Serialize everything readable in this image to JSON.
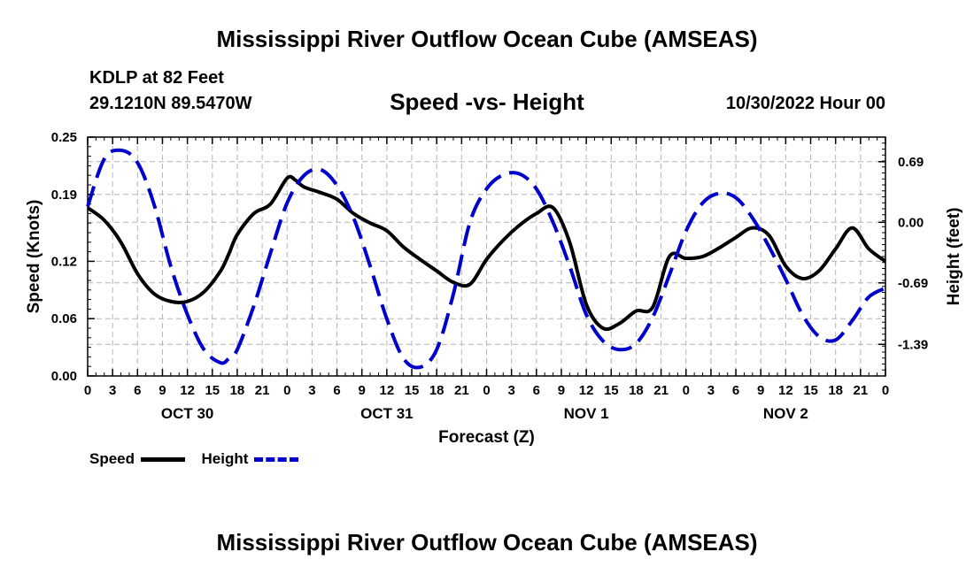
{
  "header": {
    "title": "Mississippi River Outflow Ocean Cube (AMSEAS)",
    "station": "KDLP at 82 Feet",
    "coords": "29.1210N  89.5470W",
    "subtitle": "Speed -vs- Height",
    "datetime": "10/30/2022 Hour 00",
    "footer_title": "Mississippi River Outflow Ocean Cube (AMSEAS)"
  },
  "legend": {
    "speed_label": "Speed",
    "height_label": "Height"
  },
  "colors": {
    "speed": "#000000",
    "height": "#0000cc",
    "grid": "#b4b4b4"
  },
  "chart_data": {
    "type": "line",
    "title": "Speed -vs- Height",
    "xlabel": "Forecast (Z)",
    "ylabel": "Speed (Knots)",
    "y2label": "Height (feet)",
    "xlim": [
      0,
      96
    ],
    "ylim": [
      0,
      0.25
    ],
    "y2lim": [
      -1.75,
      0.97
    ],
    "x_ticks": [
      0,
      3,
      6,
      9,
      12,
      15,
      18,
      21,
      24,
      27,
      30,
      33,
      36,
      39,
      42,
      45,
      48,
      51,
      54,
      57,
      60,
      63,
      66,
      69,
      72,
      75,
      78,
      81,
      84,
      87,
      90,
      93,
      96
    ],
    "x_tick_labels": [
      "0",
      "3",
      "6",
      "9",
      "12",
      "15",
      "18",
      "21",
      "0",
      "3",
      "6",
      "9",
      "12",
      "15",
      "18",
      "21",
      "0",
      "3",
      "6",
      "9",
      "12",
      "15",
      "18",
      "21",
      "0",
      "3",
      "6",
      "9",
      "12",
      "15",
      "18",
      "21",
      "0"
    ],
    "day_labels": [
      {
        "x": 12,
        "label": "OCT 30"
      },
      {
        "x": 36,
        "label": "OCT 31"
      },
      {
        "x": 60,
        "label": "NOV 1"
      },
      {
        "x": 84,
        "label": "NOV 2"
      }
    ],
    "y_ticks": [
      0.0,
      0.06,
      0.12,
      0.19,
      0.25
    ],
    "y_tick_labels": [
      "0.00",
      "0.06",
      "0.12",
      "0.19",
      "0.25"
    ],
    "y2_ticks": [
      0.69,
      0.0,
      -0.69,
      -1.39
    ],
    "y2_tick_labels": [
      "0.69",
      "0.00",
      "-0.69",
      "-1.39"
    ],
    "grid": true,
    "series": [
      {
        "name": "Speed",
        "axis": "left",
        "style": "solid",
        "x": [
          0,
          2,
          4,
          6,
          8,
          10,
          12,
          14,
          16,
          17,
          18,
          20,
          22,
          24,
          25,
          26,
          28,
          30,
          32,
          34,
          36,
          38,
          40,
          42,
          44,
          46,
          48,
          50,
          52,
          54,
          56,
          58,
          60,
          62,
          64,
          66,
          68,
          70,
          72,
          74,
          76,
          78,
          80,
          82,
          84,
          86,
          88,
          90,
          92,
          94,
          96
        ],
        "values": [
          0.176,
          0.163,
          0.14,
          0.107,
          0.086,
          0.078,
          0.078,
          0.088,
          0.11,
          0.128,
          0.148,
          0.17,
          0.18,
          0.207,
          0.205,
          0.198,
          0.192,
          0.185,
          0.17,
          0.16,
          0.152,
          0.135,
          0.122,
          0.11,
          0.098,
          0.096,
          0.122,
          0.142,
          0.158,
          0.17,
          0.176,
          0.14,
          0.075,
          0.05,
          0.055,
          0.068,
          0.072,
          0.125,
          0.123,
          0.125,
          0.134,
          0.145,
          0.155,
          0.147,
          0.115,
          0.102,
          0.11,
          0.133,
          0.155,
          0.133,
          0.12
        ]
      },
      {
        "name": "Height",
        "axis": "right",
        "style": "dashed",
        "x": [
          0,
          2,
          4,
          6,
          8,
          10,
          12,
          14,
          16,
          17,
          18,
          20,
          22,
          24,
          26,
          28,
          30,
          32,
          34,
          36,
          38,
          40,
          42,
          44,
          46,
          48,
          50,
          52,
          54,
          56,
          58,
          60,
          62,
          64,
          66,
          68,
          70,
          72,
          74,
          76,
          78,
          80,
          82,
          84,
          86,
          88,
          90,
          92,
          94,
          96
        ],
        "values": [
          0.18,
          0.72,
          0.82,
          0.68,
          0.2,
          -0.5,
          -1.05,
          -1.45,
          -1.6,
          -1.55,
          -1.45,
          -0.95,
          -0.35,
          0.22,
          0.53,
          0.6,
          0.42,
          0.05,
          -0.5,
          -1.1,
          -1.55,
          -1.65,
          -1.45,
          -0.82,
          0.0,
          0.38,
          0.54,
          0.55,
          0.38,
          0.0,
          -0.5,
          -1.05,
          -1.35,
          -1.45,
          -1.38,
          -1.08,
          -0.6,
          -0.1,
          0.22,
          0.33,
          0.28,
          0.05,
          -0.28,
          -0.65,
          -1.05,
          -1.3,
          -1.34,
          -1.12,
          -0.85,
          -0.75
        ]
      }
    ]
  }
}
